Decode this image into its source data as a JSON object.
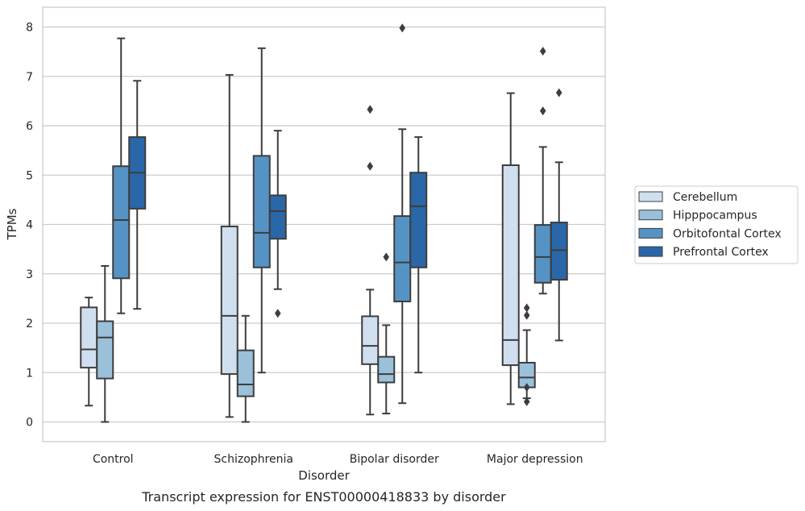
{
  "chart_data": {
    "type": "boxplot",
    "caption": "Transcript expression for ENST00000418833 by disorder",
    "xlabel": "Disorder",
    "ylabel": "TPMs",
    "ylim": [
      -0.4,
      8.4
    ],
    "yticks": [
      "0",
      "1",
      "2",
      "3",
      "4",
      "5",
      "6",
      "7",
      "8"
    ],
    "grid": "horizontal",
    "legend_position": "right",
    "categories": [
      "Control",
      "Schizophrenia",
      "Bipolar disorder",
      "Major depression"
    ],
    "series": [
      {
        "name": "Cerebellum",
        "color": "#d0dff0",
        "boxes": [
          {
            "whislo": 0.33,
            "q1": 1.1,
            "med": 1.47,
            "q3": 2.32,
            "whishi": 2.52,
            "fliers": []
          },
          {
            "whislo": 0.1,
            "q1": 0.97,
            "med": 2.15,
            "q3": 3.96,
            "whishi": 7.03,
            "fliers": []
          },
          {
            "whislo": 0.15,
            "q1": 1.17,
            "med": 1.54,
            "q3": 2.14,
            "whishi": 2.68,
            "fliers": [
              5.18,
              6.33
            ]
          },
          {
            "whislo": 0.36,
            "q1": 1.15,
            "med": 1.66,
            "q3": 5.2,
            "whishi": 6.66,
            "fliers": []
          }
        ]
      },
      {
        "name": "Hipppocampus",
        "color": "#9ac0da",
        "boxes": [
          {
            "whislo": 0.0,
            "q1": 0.88,
            "med": 1.71,
            "q3": 2.04,
            "whishi": 3.16,
            "fliers": []
          },
          {
            "whislo": 0.0,
            "q1": 0.52,
            "med": 0.76,
            "q3": 1.45,
            "whishi": 2.15,
            "fliers": []
          },
          {
            "whislo": 0.17,
            "q1": 0.8,
            "med": 0.97,
            "q3": 1.32,
            "whishi": 1.96,
            "fliers": [
              3.34
            ]
          },
          {
            "whislo": 0.48,
            "q1": 0.7,
            "med": 0.9,
            "q3": 1.2,
            "whishi": 1.86,
            "fliers": [
              0.41,
              0.7,
              2.16,
              2.31
            ]
          }
        ]
      },
      {
        "name": "Orbitofontal Cortex",
        "color": "#5693c5",
        "boxes": [
          {
            "whislo": 2.2,
            "q1": 2.91,
            "med": 4.09,
            "q3": 5.18,
            "whishi": 7.77,
            "fliers": []
          },
          {
            "whislo": 1.0,
            "q1": 3.13,
            "med": 3.83,
            "q3": 5.39,
            "whishi": 7.57,
            "fliers": []
          },
          {
            "whislo": 0.38,
            "q1": 2.44,
            "med": 3.23,
            "q3": 4.17,
            "whishi": 5.93,
            "fliers": [
              7.98
            ]
          },
          {
            "whislo": 2.6,
            "q1": 2.82,
            "med": 3.34,
            "q3": 3.99,
            "whishi": 5.57,
            "fliers": [
              6.3,
              7.51
            ]
          }
        ]
      },
      {
        "name": "Prefrontal Cortex",
        "color": "#2a67a8",
        "boxes": [
          {
            "whislo": 2.29,
            "q1": 4.32,
            "med": 5.05,
            "q3": 5.77,
            "whishi": 6.91,
            "fliers": []
          },
          {
            "whislo": 2.69,
            "q1": 3.71,
            "med": 4.27,
            "q3": 4.59,
            "whishi": 5.9,
            "fliers": [
              2.2
            ]
          },
          {
            "whislo": 1.0,
            "q1": 3.13,
            "med": 4.37,
            "q3": 5.05,
            "whishi": 5.77,
            "fliers": []
          },
          {
            "whislo": 1.65,
            "q1": 2.88,
            "med": 3.48,
            "q3": 4.04,
            "whishi": 5.26,
            "fliers": [
              6.67
            ]
          }
        ]
      }
    ]
  }
}
